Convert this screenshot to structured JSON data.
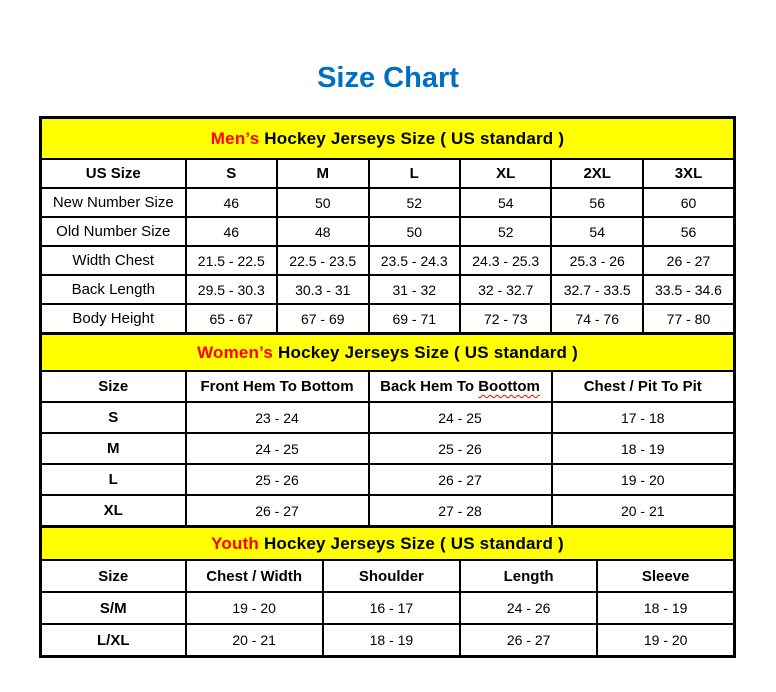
{
  "title": "Size Chart",
  "colors": {
    "title_blue": "#0070C0",
    "band_yellow": "#FFFF00",
    "highlight_red": "#FF0000",
    "border_black": "#000000"
  },
  "tables": [
    {
      "id": "mens",
      "section_highlight": "Men’s",
      "section_rest": " Hockey Jerseys Size ( US standard )",
      "columns": [
        "US Size",
        "S",
        "M",
        "L",
        "XL",
        "2XL",
        "3XL"
      ],
      "rows": [
        {
          "label": "New Number Size",
          "values": [
            "46",
            "50",
            "52",
            "54",
            "56",
            "60"
          ]
        },
        {
          "label": "Old Number Size",
          "values": [
            "46",
            "48",
            "50",
            "52",
            "54",
            "56"
          ]
        },
        {
          "label": "Width Chest",
          "values": [
            "21.5 - 22.5",
            "22.5 - 23.5",
            "23.5 - 24.3",
            "24.3 - 25.3",
            "25.3 - 26",
            "26 - 27"
          ]
        },
        {
          "label": "Back Length",
          "values": [
            "29.5 - 30.3",
            "30.3 - 31",
            "31 - 32",
            "32 - 32.7",
            "32.7 - 33.5",
            "33.5 - 34.6"
          ]
        },
        {
          "label": "Body Height",
          "values": [
            "65 - 67",
            "67 - 69",
            "69 - 71",
            "72 - 73",
            "74 - 76",
            "77 - 80"
          ]
        }
      ]
    },
    {
      "id": "womens",
      "section_highlight": "Women’s",
      "section_rest": " Hockey Jerseys Size ( US standard )",
      "columns": [
        "Size",
        "Front Hem To Bottom",
        "Back Hem To Boottom",
        "Chest / Pit To Pit"
      ],
      "squiggle_word": "Boottom",
      "rows": [
        {
          "label": "S",
          "values": [
            "23 - 24",
            "24 - 25",
            "17 - 18"
          ]
        },
        {
          "label": "M",
          "values": [
            "24 - 25",
            "25 - 26",
            "18 - 19"
          ]
        },
        {
          "label": "L",
          "values": [
            "25 - 26",
            "26 - 27",
            "19 - 20"
          ]
        },
        {
          "label": "XL",
          "values": [
            "26 - 27",
            "27 - 28",
            "20 - 21"
          ]
        }
      ]
    },
    {
      "id": "youth",
      "section_highlight": "Youth",
      "section_rest": " Hockey Jerseys Size ( US standard )",
      "columns": [
        "Size",
        "Chest / Width",
        "Shoulder",
        "Length",
        "Sleeve"
      ],
      "rows": [
        {
          "label": "S/M",
          "values": [
            "19 - 20",
            "16 - 17",
            "24 - 26",
            "18 - 19"
          ]
        },
        {
          "label": "L/XL",
          "values": [
            "20 - 21",
            "18 - 19",
            "26 - 27",
            "19 - 20"
          ]
        }
      ]
    }
  ]
}
